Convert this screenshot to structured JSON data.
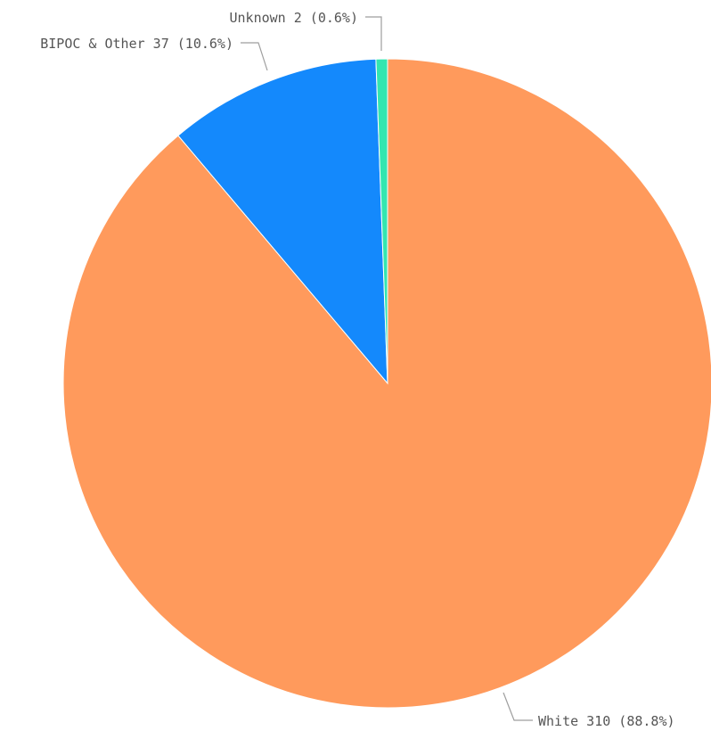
{
  "chart_data": {
    "type": "pie",
    "slices": [
      {
        "label": "White 310 (88.8%)",
        "category": "White",
        "value": 310,
        "percent": 88.8,
        "color": "#ff9a5c"
      },
      {
        "label": "BIPOC & Other 37 (10.6%)",
        "category": "BIPOC & Other",
        "value": 37,
        "percent": 10.6,
        "color": "#1489fc"
      },
      {
        "label": "Unknown 2 (0.6%)",
        "category": "Unknown",
        "value": 2,
        "percent": 0.6,
        "color": "#33e6b0"
      }
    ],
    "start_angle_deg": 0,
    "direction": "clockwise",
    "legend": "none",
    "labels": "outside-with-leader-lines"
  }
}
